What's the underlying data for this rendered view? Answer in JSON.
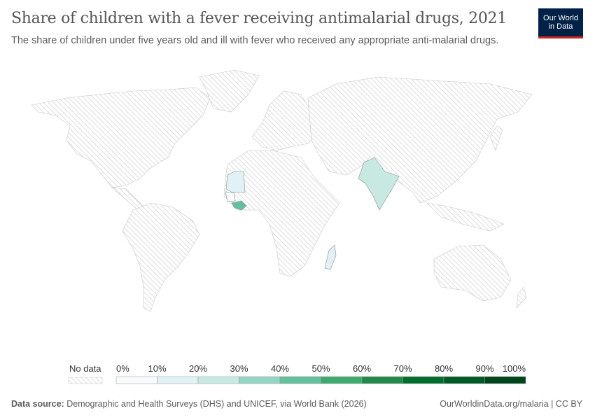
{
  "header": {
    "title": "Share of children with a fever receiving antimalarial drugs, 2021",
    "subtitle": "The share of children under five years old and ill with fever who received any appropriate anti-malarial drugs.",
    "logo": {
      "line1": "Our World",
      "line2": "in Data"
    }
  },
  "chart_data": {
    "type": "choropleth",
    "year": 2021,
    "countries": [
      {
        "name": "Mauritania",
        "value": 15
      },
      {
        "name": "Senegal",
        "value": 8
      },
      {
        "name": "Guinea",
        "value": 45
      },
      {
        "name": "India",
        "value": 25
      },
      {
        "name": "Madagascar",
        "value": 14
      }
    ],
    "legend": {
      "no_data_label": "No data",
      "ticks": [
        "0%",
        "10%",
        "20%",
        "30%",
        "40%",
        "50%",
        "60%",
        "70%",
        "80%",
        "90%",
        "100%"
      ],
      "colors": [
        "#f7fbfb",
        "#e1f1f5",
        "#c8e9e2",
        "#96d4c4",
        "#63bf9e",
        "#3faa6e",
        "#22894a",
        "#006d2c",
        "#005a24",
        "#00441b"
      ]
    }
  },
  "footer": {
    "source_label": "Data source:",
    "source_text": "Demographic and Health Surveys (DHS) and UNICEF, via World Bank (2026)",
    "url": "OurWorldinData.org/malaria | CC BY"
  }
}
